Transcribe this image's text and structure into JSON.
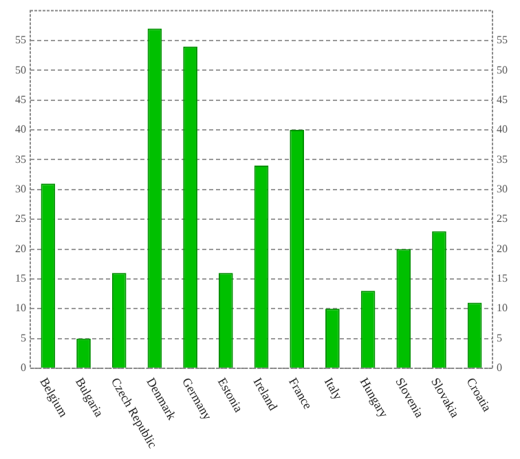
{
  "chart_data": {
    "type": "bar",
    "categories": [
      "Belgium",
      "Bulgaria",
      "Czech Republic",
      "Denmark",
      "Germany",
      "Estonia",
      "Ireland",
      "France",
      "Italy",
      "Hungary",
      "Slovenia",
      "Slovakia",
      "Croatia"
    ],
    "values": [
      31,
      5,
      16,
      57,
      54,
      16,
      34,
      40,
      10,
      13,
      20,
      23,
      11
    ],
    "color": "#00c000",
    "ylim": [
      0,
      60
    ],
    "yticks": [
      0,
      5,
      10,
      15,
      20,
      25,
      30,
      35,
      40,
      45,
      50,
      55
    ],
    "y2lim": [
      0,
      60
    ],
    "y2ticks": [
      0,
      5,
      10,
      15,
      20,
      25,
      30,
      35,
      40,
      45,
      50,
      55
    ],
    "grid": "y",
    "legend": false
  }
}
